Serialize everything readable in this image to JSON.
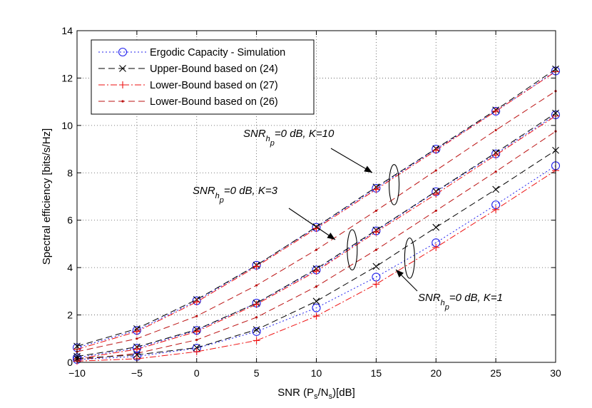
{
  "chart_data": {
    "type": "line",
    "title": "",
    "xlabel_parts": [
      "SNR (P",
      "s",
      "/N",
      "s",
      ")[dB]"
    ],
    "ylabel": "Spectral efficiency [bits/s/Hz]",
    "xlim": [
      -10,
      30
    ],
    "ylim": [
      0,
      14
    ],
    "xticks": [
      -10,
      -5,
      0,
      5,
      10,
      15,
      20,
      25,
      30
    ],
    "yticks": [
      0,
      2,
      4,
      6,
      8,
      10,
      12,
      14
    ],
    "grid": true,
    "x": [
      -10,
      -5,
      0,
      5,
      10,
      15,
      20,
      25,
      30
    ],
    "legend": {
      "position": "top-left",
      "entries": [
        {
          "key": "sim",
          "label": "Ergodic Capacity - Simulation"
        },
        {
          "key": "ub24",
          "label": "Upper-Bound based on (24)"
        },
        {
          "key": "lb27",
          "label": "Lower-Bound based on (27)"
        },
        {
          "key": "lb26",
          "label": "Lower-Bound based on (26)"
        }
      ]
    },
    "styles": {
      "sim": {
        "color": "#2222ee",
        "dash": "2,3",
        "marker": "circle"
      },
      "ub24": {
        "color": "#000000",
        "dash": "9,5",
        "marker": "x"
      },
      "lb27": {
        "color": "#ee1111",
        "dash": "9,3,2,3",
        "marker": "plus"
      },
      "lb26": {
        "color": "#bb1111",
        "dash": "9,5",
        "marker": "dot"
      }
    },
    "series": [
      {
        "name": "Ergodic Capacity - Simulation",
        "style": "sim",
        "group": "K=10",
        "values": [
          0.62,
          1.35,
          2.6,
          4.1,
          5.7,
          7.35,
          9.0,
          10.6,
          12.3
        ]
      },
      {
        "name": "Upper-Bound based on (24)",
        "style": "ub24",
        "group": "K=10",
        "values": [
          0.68,
          1.42,
          2.65,
          4.1,
          5.72,
          7.4,
          9.02,
          10.65,
          12.38
        ]
      },
      {
        "name": "Lower-Bound based on (27)",
        "style": "lb27",
        "group": "K=10",
        "values": [
          0.55,
          1.3,
          2.55,
          4.05,
          5.65,
          7.3,
          8.95,
          10.6,
          12.27
        ]
      },
      {
        "name": "Lower-Bound based on (26)",
        "style": "lb26",
        "group": "K=10",
        "values": [
          0.45,
          1.0,
          1.95,
          3.25,
          4.75,
          6.4,
          8.1,
          9.8,
          11.45
        ]
      },
      {
        "name": "Ergodic Capacity - Simulation",
        "style": "sim",
        "group": "K=3",
        "values": [
          0.2,
          0.6,
          1.35,
          2.5,
          3.9,
          5.55,
          7.2,
          8.8,
          10.45
        ]
      },
      {
        "name": "Upper-Bound based on (24)",
        "style": "ub24",
        "group": "K=3",
        "values": [
          0.25,
          0.65,
          1.38,
          2.5,
          3.95,
          5.58,
          7.22,
          8.85,
          10.52
        ]
      },
      {
        "name": "Lower-Bound based on (27)",
        "style": "lb27",
        "group": "K=3",
        "values": [
          0.15,
          0.55,
          1.3,
          2.45,
          3.85,
          5.5,
          7.1,
          8.75,
          10.4
        ]
      },
      {
        "name": "Lower-Bound based on (26)",
        "style": "lb26",
        "group": "K=3",
        "values": [
          0.1,
          0.38,
          0.95,
          1.9,
          3.2,
          4.75,
          6.4,
          8.05,
          9.75
        ]
      },
      {
        "name": "Ergodic Capacity - Simulation",
        "style": "sim",
        "group": "K=1",
        "values": [
          0.12,
          0.25,
          0.6,
          1.3,
          2.3,
          3.6,
          5.05,
          6.65,
          8.3
        ]
      },
      {
        "name": "Upper-Bound based on (24)",
        "style": "ub24",
        "group": "K=1",
        "values": [
          0.16,
          0.32,
          0.62,
          1.38,
          2.58,
          4.05,
          5.7,
          7.3,
          8.95
        ]
      },
      {
        "name": "Lower-Bound based on (27)",
        "style": "lb27",
        "group": "K=1",
        "values": [
          0.05,
          0.15,
          0.45,
          0.92,
          1.95,
          3.3,
          4.85,
          6.45,
          8.1
        ]
      }
    ],
    "annotations": [
      {
        "key": "k10",
        "pre": "SNR",
        "sub": "h",
        "subsub": "p",
        "post": "=0 dB, K=10",
        "ellipse_center": [
          16.5,
          7.5
        ],
        "ellipse_ry": 0.85
      },
      {
        "key": "k3",
        "pre": "SNR",
        "sub": "h",
        "subsub": "p",
        "post": "=0 dB, K=3",
        "ellipse_center": [
          13.0,
          4.75
        ],
        "ellipse_ry": 0.85
      },
      {
        "key": "k1",
        "pre": "SNR",
        "sub": "h",
        "subsub": "p",
        "post": "=0 dB, K=1",
        "ellipse_center": [
          17.8,
          4.4
        ],
        "ellipse_ry": 0.85
      }
    ]
  }
}
